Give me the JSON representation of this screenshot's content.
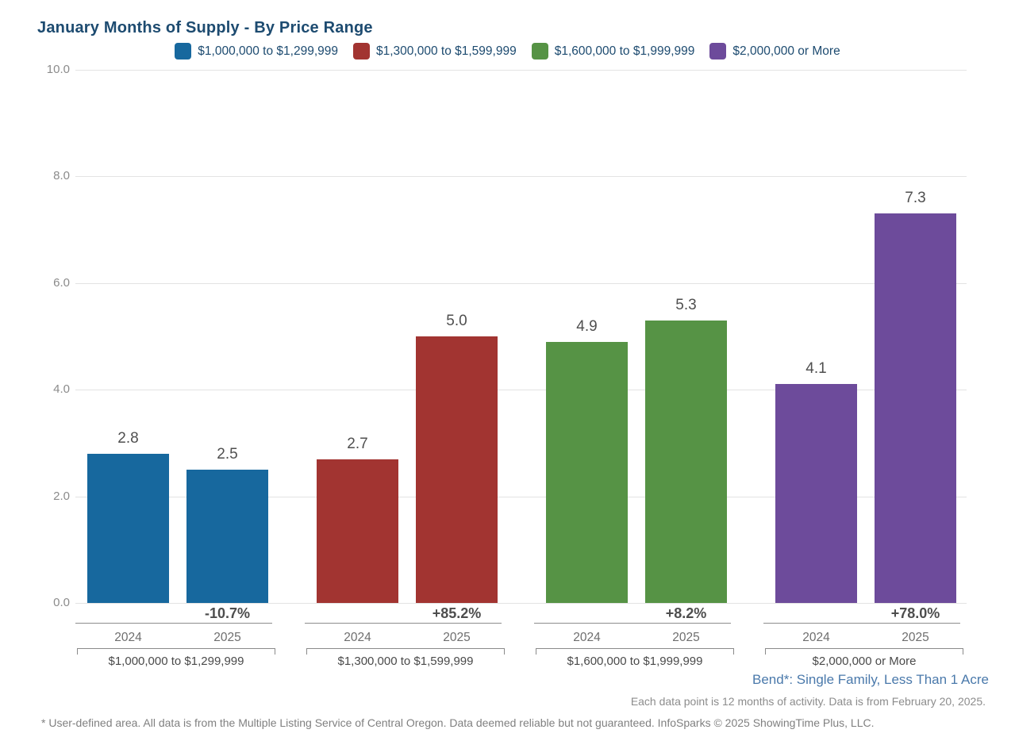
{
  "title": "January Months of Supply - By Price Range",
  "colors": {
    "title_text": "#1d4b70",
    "legend_text": "#1d4b70",
    "gridline": "#e3e3e3",
    "axis_tick_text": "#8b8b8b",
    "value_label_text": "#4f4f4f",
    "change_label_text": "#4d4d4d",
    "year_label_text": "#6e6e6e",
    "group_label_text": "#4a4a4a",
    "footer_location_text": "#4a79ab",
    "footer_note_text": "#8c8c8c",
    "footer_disclaimer_text": "#808080"
  },
  "chart_data": {
    "type": "bar",
    "title": "January Months of Supply - By Price Range",
    "xlabel": "",
    "ylabel": "",
    "ylim": [
      0,
      10
    ],
    "yticks": [
      0,
      2,
      4,
      6,
      8,
      10
    ],
    "ytick_labels": [
      "0.0",
      "2.0",
      "4.0",
      "6.0",
      "8.0",
      "10.0"
    ],
    "grid": "horizontal",
    "legend_position": "top",
    "categories": [
      "2024",
      "2025"
    ],
    "series": [
      {
        "name": "$1,000,000 to $1,299,999",
        "color": "#17689e",
        "values": [
          2.8,
          2.5
        ],
        "value_labels": [
          "2.8",
          "2.5"
        ],
        "change": "-10.7%"
      },
      {
        "name": "$1,300,000 to $1,599,999",
        "color": "#a23431",
        "values": [
          2.7,
          5.0
        ],
        "value_labels": [
          "2.7",
          "5.0"
        ],
        "change": "+85.2%"
      },
      {
        "name": "$1,600,000 to $1,999,999",
        "color": "#569345",
        "values": [
          4.9,
          5.3
        ],
        "value_labels": [
          "4.9",
          "5.3"
        ],
        "change": "+8.2%"
      },
      {
        "name": "$2,000,000 or More",
        "color": "#6d4b9b",
        "values": [
          4.1,
          7.3
        ],
        "value_labels": [
          "4.1",
          "7.3"
        ],
        "change": "+78.0%"
      }
    ]
  },
  "footer": {
    "location": "Bend*: Single Family, Less Than 1 Acre",
    "note": "Each data point is 12 months of activity. Data is from February 20, 2025.",
    "disclaimer": "* User-defined area. All data is from the Multiple Listing Service of Central Oregon. Data deemed reliable but not guaranteed. InfoSparks © 2025 ShowingTime Plus, LLC."
  }
}
